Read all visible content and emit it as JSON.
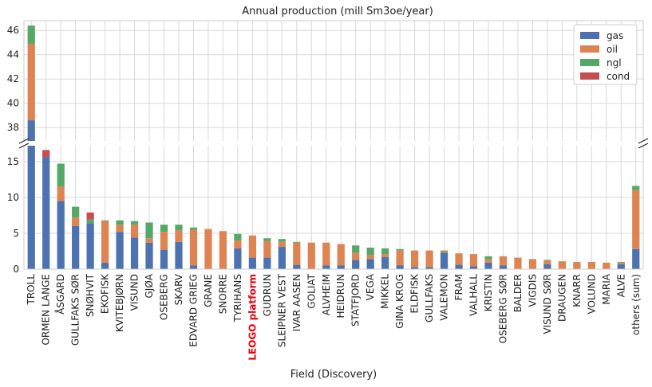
{
  "chart_data": {
    "type": "bar",
    "stacked": true,
    "broken_y_axis": true,
    "title": "Annual production (mill Sm3oe/year)",
    "xlabel": "Field (Discovery)",
    "ylabel": "",
    "highlight_category": "LEOGO platform",
    "highlight_color": "#e8000b",
    "categories": [
      "TROLL",
      "ORMEN LANGE",
      "ÅSGARD",
      "GULLFAKS SØR",
      "SNØHVIT",
      "EKOFISK",
      "KVITEBJØRN",
      "VISUND",
      "GJØA",
      "OSEBERG",
      "SKARV",
      "EDVARD GRIEG",
      "GRANE",
      "SNORRE",
      "TYRIHANS",
      "LEOGO platform",
      "GUDRUN",
      "SLEIPNER VEST",
      "IVAR AASEN",
      "GOLIAT",
      "ALVHEIM",
      "HEIDRUN",
      "STATFJORD",
      "VEGA",
      "MIKKEL",
      "GINA KROG",
      "ELDFISK",
      "GULLFAKS",
      "VALEMON",
      "FRAM",
      "VALHALL",
      "KRISTIN",
      "OSEBERG SØR",
      "BALDER",
      "VIGDIS",
      "VISUND SØR",
      "DRAUGEN",
      "KNARR",
      "VOLUND",
      "MARIA",
      "ALVE",
      "others (sum)"
    ],
    "series": [
      {
        "name": "gas",
        "color": "#4c72b0",
        "values": [
          38.6,
          15.6,
          9.5,
          6.0,
          6.4,
          0.9,
          5.2,
          4.4,
          3.7,
          2.7,
          3.8,
          0.5,
          0,
          0,
          2.9,
          1.6,
          1.6,
          3.1,
          0.6,
          0,
          0.5,
          0.5,
          1.3,
          1.4,
          1.7,
          0.5,
          0.3,
          0.3,
          2.3,
          0.6,
          0.4,
          0.9,
          0.5,
          0,
          0,
          0.7,
          0,
          0,
          0,
          0,
          0.7,
          2.8
        ]
      },
      {
        "name": "oil",
        "color": "#dd8452",
        "values": [
          6.3,
          0,
          2.0,
          1.2,
          0,
          5.8,
          1.0,
          1.8,
          0.6,
          2.5,
          1.6,
          5.0,
          5.6,
          5.3,
          1.1,
          3.1,
          2.3,
          0.7,
          3.1,
          3.7,
          3.2,
          3.0,
          1.0,
          0.6,
          0.4,
          2.1,
          2.3,
          2.3,
          0.2,
          1.6,
          1.7,
          0.5,
          1.3,
          1.6,
          1.4,
          0.5,
          1.1,
          1.0,
          1.0,
          0.9,
          0.2,
          8.2
        ]
      },
      {
        "name": "ngl",
        "color": "#55a868",
        "values": [
          1.5,
          0,
          3.2,
          1.5,
          0.5,
          0.1,
          0.6,
          0.5,
          2.2,
          1.0,
          0.8,
          0.3,
          0,
          0,
          0.9,
          0,
          0.4,
          0.4,
          0.1,
          0,
          0,
          0,
          1.0,
          1.0,
          0.8,
          0.2,
          0,
          0,
          0.1,
          0,
          0,
          0.4,
          0,
          0,
          0,
          0.1,
          0,
          0,
          0,
          0,
          0.1,
          0.6
        ]
      },
      {
        "name": "cond",
        "color": "#c44e52",
        "values": [
          0,
          1.0,
          0,
          0,
          1.0,
          0,
          0,
          0,
          0,
          0,
          0,
          0,
          0,
          0,
          0,
          0,
          0,
          0,
          0,
          0,
          0,
          0,
          0,
          0,
          0,
          0,
          0,
          0,
          0,
          0,
          0,
          0,
          0,
          0,
          0,
          0,
          0,
          0,
          0,
          0,
          0,
          0
        ]
      }
    ],
    "upper_panel": {
      "ylim": [
        36.9,
        46.8
      ],
      "yticks": [
        38,
        40,
        42,
        44,
        46
      ]
    },
    "lower_panel": {
      "ylim": [
        0,
        17.2
      ],
      "yticks": [
        0,
        5,
        10,
        15
      ]
    },
    "grid": true,
    "legend_position": "top-right"
  }
}
